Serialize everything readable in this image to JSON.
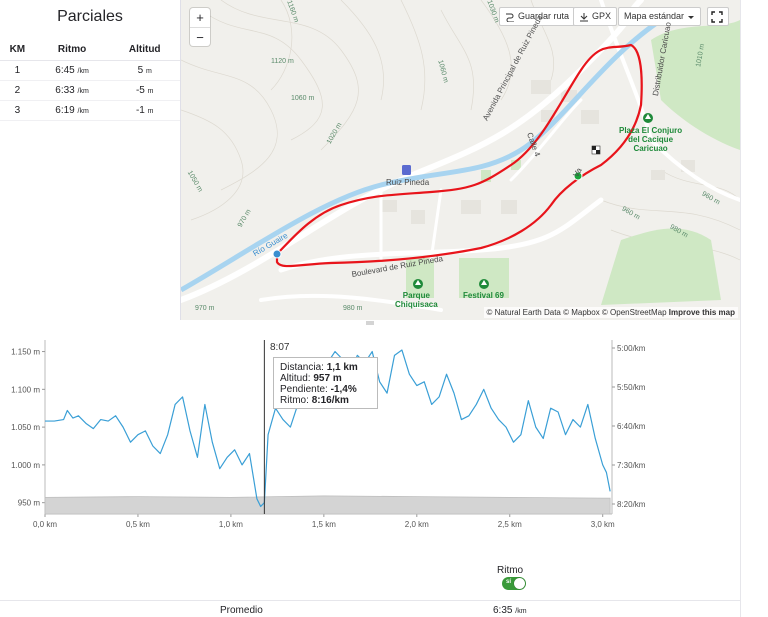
{
  "splits": {
    "title": "Parciales",
    "headers": {
      "km": "KM",
      "pace": "Ritmo",
      "elev": "Altitud"
    },
    "rows": [
      {
        "km": "1",
        "pace": "6:45",
        "pace_unit": "/km",
        "elev": "5",
        "elev_unit": "m"
      },
      {
        "km": "2",
        "pace": "6:33",
        "pace_unit": "/km",
        "elev": "-5",
        "elev_unit": "m"
      },
      {
        "km": "3",
        "pace": "6:19",
        "pace_unit": "/km",
        "elev": "-1",
        "elev_unit": "m"
      }
    ]
  },
  "map": {
    "zoom_in": "+",
    "zoom_out": "−",
    "save_route": "Guardar ruta",
    "gpx": "GPX",
    "map_style": "Mapa estándar",
    "attribution": {
      "a": "© Natural Earth Data",
      "b": "© Mapbox",
      "c": "© OpenStreetMap",
      "d": "Improve this map"
    },
    "labels": {
      "avenida": "Avenida Principal de Ruiz Pineda",
      "boulevard": "Boulevard de Ruiz Pineda",
      "rio": "Río Guaire",
      "calle": "Calle 4",
      "distribuidor": "Distribuidor Caricuao",
      "ruiz_pineda": "Ruiz Pineda",
      "va": "Va"
    },
    "pois": {
      "plaza": "Plaza El Conjuro del Cacique Caricuao",
      "plaza_l1": "Plaza El Conjuro",
      "plaza_l2": "del Cacique",
      "plaza_l3": "Caricuao",
      "parque_l1": "Parque",
      "parque_l2": "Chiquisaca",
      "festival": "Festival 69"
    },
    "contours": [
      "1160 m",
      "1120 m",
      "1060 m",
      "1060 m",
      "1020 m",
      "1050 m",
      "970 m",
      "1010 m",
      "960 m",
      "960 m",
      "980 m",
      "970 m",
      "980 m",
      "1030 m"
    ],
    "colors": {
      "route": "#e8141b",
      "start": "#1aa33a",
      "end_marker": "#3a8fd0",
      "river": "#a8d4f0",
      "park": "#c8e6c0"
    }
  },
  "chart": {
    "cursor_time": "8:07",
    "tooltip": {
      "dist_label": "Distancia:",
      "dist_value": "1,1 km",
      "alt_label": "Altitud:",
      "alt_value": "957 m",
      "slope_label": "Pendiente:",
      "slope_value": "-1,4%",
      "pace_label": "Ritmo:",
      "pace_value": "8:16/km"
    }
  },
  "chart_data": {
    "type": "line",
    "xlabel": "",
    "x_ticks": [
      "0,0 km",
      "0,5 km",
      "1,0 km",
      "1,5 km",
      "2,0 km",
      "2,5 km",
      "3,0 km"
    ],
    "xlim": [
      0,
      3.05
    ],
    "y_left_ticks": [
      "1.150 m",
      "1.100 m",
      "1.050 m",
      "1.000 m",
      "950 m"
    ],
    "y_right_ticks": [
      "5:00/km",
      "5:50/km",
      "6:40/km",
      "7:30/km",
      "8:20/km"
    ],
    "ylim_left": [
      935,
      1160
    ],
    "series": [
      {
        "color": "#3a9fd6",
        "x": [
          0,
          0.05,
          0.1,
          0.12,
          0.15,
          0.18,
          0.22,
          0.26,
          0.3,
          0.34,
          0.38,
          0.42,
          0.46,
          0.5,
          0.54,
          0.58,
          0.62,
          0.66,
          0.7,
          0.74,
          0.78,
          0.82,
          0.86,
          0.9,
          0.94,
          0.98,
          1.02,
          1.06,
          1.1,
          1.14,
          1.16,
          1.18,
          1.2,
          1.24,
          1.28,
          1.32,
          1.36,
          1.4,
          1.44,
          1.48,
          1.52,
          1.56,
          1.6,
          1.64,
          1.68,
          1.72,
          1.76,
          1.8,
          1.84,
          1.88,
          1.92,
          1.96,
          2.0,
          2.04,
          2.08,
          2.12,
          2.16,
          2.2,
          2.24,
          2.28,
          2.32,
          2.36,
          2.4,
          2.44,
          2.48,
          2.52,
          2.56,
          2.6,
          2.64,
          2.68,
          2.72,
          2.76,
          2.8,
          2.84,
          2.88,
          2.92,
          2.96,
          3.0,
          3.02,
          3.04
        ],
        "values": [
          1058,
          1058,
          1060,
          1072,
          1062,
          1065,
          1055,
          1048,
          1060,
          1058,
          1065,
          1050,
          1030,
          1040,
          1045,
          1025,
          1015,
          1040,
          1080,
          1090,
          1045,
          1010,
          1080,
          1030,
          995,
          1010,
          1020,
          1000,
          1015,
          955,
          945,
          950,
          1040,
          1075,
          1060,
          1050,
          1080,
          1095,
          1085,
          1110,
          1135,
          1150,
          1140,
          1120,
          1145,
          1135,
          1150,
          1110,
          1095,
          1145,
          1152,
          1120,
          1105,
          1110,
          1080,
          1090,
          1120,
          1095,
          1060,
          1065,
          1080,
          1100,
          1075,
          1060,
          1050,
          1030,
          1040,
          1085,
          1050,
          1035,
          1075,
          1070,
          1040,
          1060,
          1050,
          1080,
          1035,
          1000,
          990,
          965
        ]
      },
      {
        "color": "#c8c8c8",
        "fill": true,
        "x": [
          0,
          0.5,
          1.0,
          1.5,
          2.0,
          2.5,
          3.0,
          3.04
        ],
        "values": [
          957,
          958,
          957,
          959,
          958,
          957,
          956,
          956
        ]
      }
    ],
    "cursor_x": 1.18
  },
  "pace_toggle": {
    "label": "Ritmo",
    "state": "sí"
  },
  "average": {
    "label": "Promedio",
    "value": "6:35",
    "unit": "/km"
  }
}
